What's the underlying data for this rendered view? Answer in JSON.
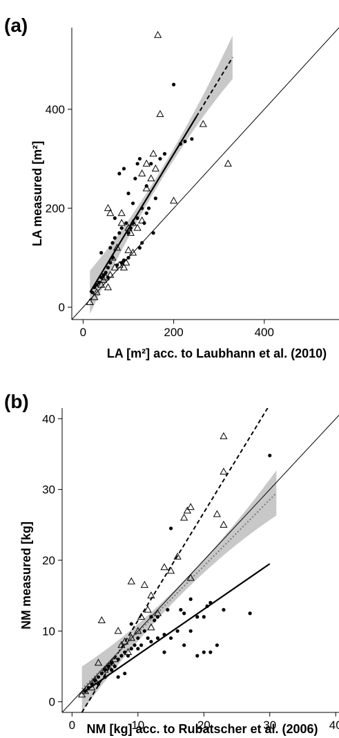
{
  "chart_data": [
    {
      "panel_label": "(a)",
      "type": "scatter",
      "xlabel": "LA [m²] acc. to Laubhann et al. (2010)",
      "ylabel": "LA measured [m²]",
      "xlim": [
        -25,
        565
      ],
      "ylim": [
        -25,
        565
      ],
      "xticks": [
        0,
        200,
        400
      ],
      "yticks": [
        0,
        200,
        400
      ],
      "one_to_one_line": true,
      "series": [
        {
          "marker": "filled-circle",
          "points": [
            [
              20,
              30
            ],
            [
              25,
              40
            ],
            [
              30,
              45
            ],
            [
              35,
              50
            ],
            [
              40,
              60
            ],
            [
              40,
              110
            ],
            [
              45,
              65
            ],
            [
              50,
              70
            ],
            [
              55,
              60
            ],
            [
              55,
              80
            ],
            [
              60,
              90
            ],
            [
              60,
              120
            ],
            [
              65,
              100
            ],
            [
              65,
              130
            ],
            [
              70,
              140
            ],
            [
              70,
              180
            ],
            [
              75,
              85
            ],
            [
              80,
              150
            ],
            [
              80,
              270
            ],
            [
              85,
              90
            ],
            [
              85,
              160
            ],
            [
              90,
              95
            ],
            [
              90,
              280
            ],
            [
              95,
              170
            ],
            [
              100,
              100
            ],
            [
              100,
              150
            ],
            [
              100,
              230
            ],
            [
              105,
              160
            ],
            [
              110,
              170
            ],
            [
              110,
              210
            ],
            [
              115,
              260
            ],
            [
              120,
              180
            ],
            [
              120,
              290
            ],
            [
              125,
              120
            ],
            [
              125,
              300
            ],
            [
              130,
              130
            ],
            [
              130,
              200
            ],
            [
              135,
              170
            ],
            [
              140,
              190
            ],
            [
              140,
              245
            ],
            [
              145,
              200
            ],
            [
              150,
              290
            ],
            [
              155,
              150
            ],
            [
              160,
              220
            ],
            [
              170,
              300
            ],
            [
              180,
              310
            ],
            [
              200,
              450
            ],
            [
              215,
              330
            ],
            [
              225,
              335
            ],
            [
              240,
              340
            ]
          ]
        },
        {
          "marker": "open-triangle",
          "points": [
            [
              15,
              10
            ],
            [
              25,
              20
            ],
            [
              30,
              30
            ],
            [
              40,
              45
            ],
            [
              45,
              55
            ],
            [
              50,
              60
            ],
            [
              55,
              40
            ],
            [
              55,
              200
            ],
            [
              60,
              65
            ],
            [
              60,
              190
            ],
            [
              65,
              100
            ],
            [
              70,
              80
            ],
            [
              75,
              120
            ],
            [
              80,
              85
            ],
            [
              85,
              170
            ],
            [
              85,
              190
            ],
            [
              90,
              80
            ],
            [
              95,
              90
            ],
            [
              100,
              115
            ],
            [
              100,
              160
            ],
            [
              105,
              150
            ],
            [
              110,
              110
            ],
            [
              110,
              170
            ],
            [
              120,
              160
            ],
            [
              130,
              175
            ],
            [
              130,
              270
            ],
            [
              140,
              290
            ],
            [
              140,
              240
            ],
            [
              150,
              260
            ],
            [
              155,
              310
            ],
            [
              160,
              280
            ],
            [
              165,
              550
            ],
            [
              170,
              390
            ],
            [
              200,
              215
            ],
            [
              265,
              370
            ],
            [
              320,
              290
            ]
          ]
        }
      ],
      "fits": [
        {
          "style": "solid-then-dashed",
          "x": [
            15,
            250
          ],
          "y": [
            30,
            385
          ],
          "x_extrap": [
            250,
            330
          ],
          "y_extrap": [
            385,
            505
          ],
          "ci": true
        }
      ]
    },
    {
      "panel_label": "(b)",
      "type": "scatter",
      "xlabel": "NM [kg] acc. to Rubatscher et al. (2006)",
      "ylabel": "NM measured [kg]",
      "xlim": [
        -1.5,
        40.5
      ],
      "ylim": [
        -1.5,
        41.5
      ],
      "xticks": [
        0,
        10,
        20,
        30,
        40
      ],
      "yticks": [
        0,
        10,
        20,
        30,
        40
      ],
      "one_to_one_line": true,
      "series": [
        {
          "marker": "filled-circle",
          "points": [
            [
              2,
              1.5
            ],
            [
              2.5,
              2
            ],
            [
              3,
              2.5
            ],
            [
              3.5,
              3
            ],
            [
              4,
              2.5
            ],
            [
              4,
              3.5
            ],
            [
              4.5,
              4
            ],
            [
              5,
              4.5
            ],
            [
              5,
              3.5
            ],
            [
              5.5,
              5
            ],
            [
              6,
              4.5
            ],
            [
              6,
              5.5
            ],
            [
              6.5,
              5
            ],
            [
              7,
              3.5
            ],
            [
              7,
              6
            ],
            [
              7.5,
              6.5
            ],
            [
              8,
              7
            ],
            [
              8,
              4
            ],
            [
              8.5,
              6.5
            ],
            [
              9,
              7.5
            ],
            [
              9,
              11
            ],
            [
              9.5,
              8
            ],
            [
              10,
              7.5
            ],
            [
              10,
              9
            ],
            [
              10.5,
              8
            ],
            [
              11,
              10
            ],
            [
              11.5,
              9
            ],
            [
              12,
              8.5
            ],
            [
              12,
              12
            ],
            [
              12.5,
              11.5
            ],
            [
              13,
              9
            ],
            [
              13,
              12
            ],
            [
              14,
              7
            ],
            [
              14,
              9.5
            ],
            [
              14.5,
              13
            ],
            [
              15,
              9
            ],
            [
              15,
              24.5
            ],
            [
              16,
              10
            ],
            [
              16.5,
              13
            ],
            [
              17,
              8
            ],
            [
              17,
              12.5
            ],
            [
              18,
              14.5
            ],
            [
              18,
              10
            ],
            [
              19,
              12
            ],
            [
              19,
              6.5
            ],
            [
              20,
              12
            ],
            [
              20,
              7
            ],
            [
              20.5,
              13.5
            ],
            [
              21,
              14
            ],
            [
              21,
              7
            ],
            [
              22,
              8
            ],
            [
              23,
              13
            ],
            [
              27,
              12.5
            ],
            [
              30,
              34.8
            ]
          ]
        },
        {
          "marker": "open-triangle",
          "points": [
            [
              1.5,
              1
            ],
            [
              2,
              1.5
            ],
            [
              3,
              2
            ],
            [
              3.5,
              3
            ],
            [
              4,
              5.5
            ],
            [
              4.5,
              11.5
            ],
            [
              5,
              4.5
            ],
            [
              5.5,
              5
            ],
            [
              6,
              5.5
            ],
            [
              6.5,
              6
            ],
            [
              7,
              10
            ],
            [
              7.5,
              8
            ],
            [
              8,
              8.5
            ],
            [
              8.5,
              7
            ],
            [
              9,
              17
            ],
            [
              9,
              9
            ],
            [
              10,
              10
            ],
            [
              10.5,
              12
            ],
            [
              11,
              16.5
            ],
            [
              11.5,
              13
            ],
            [
              12,
              10.5
            ],
            [
              12,
              15
            ],
            [
              13,
              12.5
            ],
            [
              14,
              19
            ],
            [
              15,
              18.5
            ],
            [
              16,
              20.5
            ],
            [
              17,
              26
            ],
            [
              17.5,
              27
            ],
            [
              18,
              27.5
            ],
            [
              18,
              17.5
            ],
            [
              22,
              26.5
            ],
            [
              23,
              25
            ],
            [
              23,
              32.5
            ],
            [
              23,
              37.5
            ]
          ]
        }
      ],
      "fits": [
        {
          "style": "dashed",
          "x": [
            1.5,
            30
          ],
          "y": [
            -1.5,
            42
          ]
        },
        {
          "style": "dotted-gray",
          "x": [
            1.5,
            31
          ],
          "y": [
            1.8,
            29.5
          ],
          "ci": true
        },
        {
          "style": "solid",
          "x": [
            2,
            30
          ],
          "y": [
            1.5,
            19.5
          ]
        }
      ]
    }
  ]
}
